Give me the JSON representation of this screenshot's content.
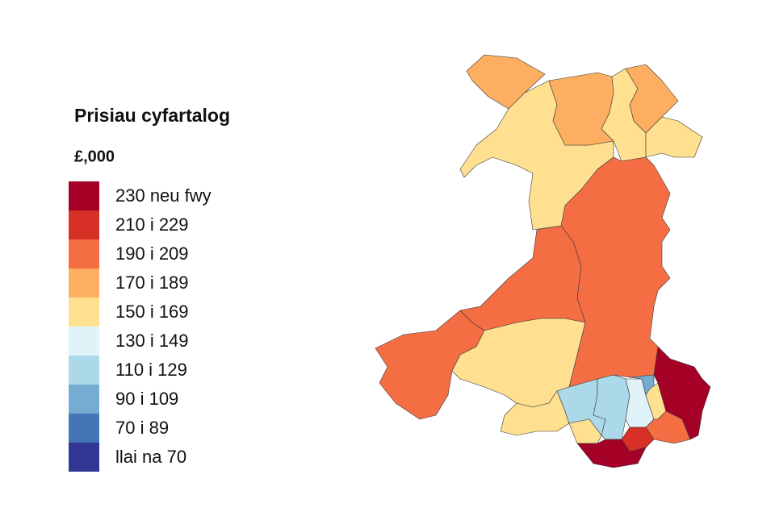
{
  "legend": {
    "title": "Prisiau cyfartalog",
    "subtitle": "£,000",
    "items": [
      {
        "label": "230 neu fwy",
        "color": "#a50026"
      },
      {
        "label": "210 i 229",
        "color": "#d73027"
      },
      {
        "label": "190 i 209",
        "color": "#f46d43"
      },
      {
        "label": "170 i 189",
        "color": "#fdae61"
      },
      {
        "label": "150 i 169",
        "color": "#fee090"
      },
      {
        "label": "130 i 149",
        "color": "#e0f3f8"
      },
      {
        "label": "110 i 129",
        "color": "#abd9e9"
      },
      {
        "label": "90 i 109",
        "color": "#74add1"
      },
      {
        "label": "70 i 89",
        "color": "#4575b4"
      },
      {
        "label": "llai na 70",
        "color": "#313695"
      }
    ]
  }
}
